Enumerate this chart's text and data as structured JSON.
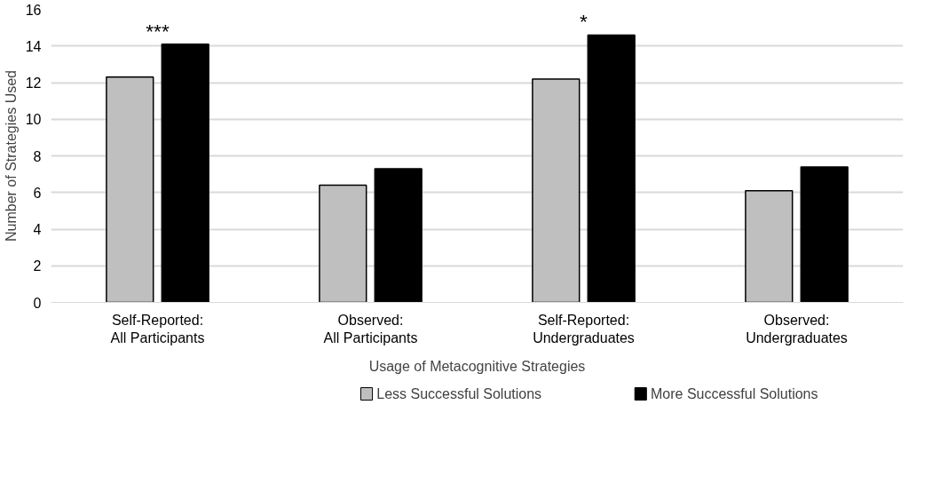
{
  "chart_data": {
    "type": "bar",
    "xlabel": "Usage of Metacognitive Strategies",
    "ylabel": "Number of Strategies Used",
    "categories": [
      "Self-Reported:\nAll Participants",
      "Observed:\nAll Participants",
      "Self-Reported:\nUndergraduates",
      "Observed:\nUndergraduates"
    ],
    "series": [
      {
        "name": "Less Successful Solutions",
        "color": "#bfbfbf",
        "values": [
          12.3,
          6.4,
          12.2,
          6.1
        ]
      },
      {
        "name": "More Successful Solutions",
        "color": "#000000",
        "values": [
          14.1,
          7.3,
          14.6,
          7.4
        ]
      }
    ],
    "ylim": [
      0,
      16
    ],
    "yticks": [
      0,
      2,
      4,
      6,
      8,
      10,
      12,
      14,
      16
    ],
    "grid": "y",
    "legend": "bottom",
    "annotations": [
      "***",
      "*"
    ]
  }
}
